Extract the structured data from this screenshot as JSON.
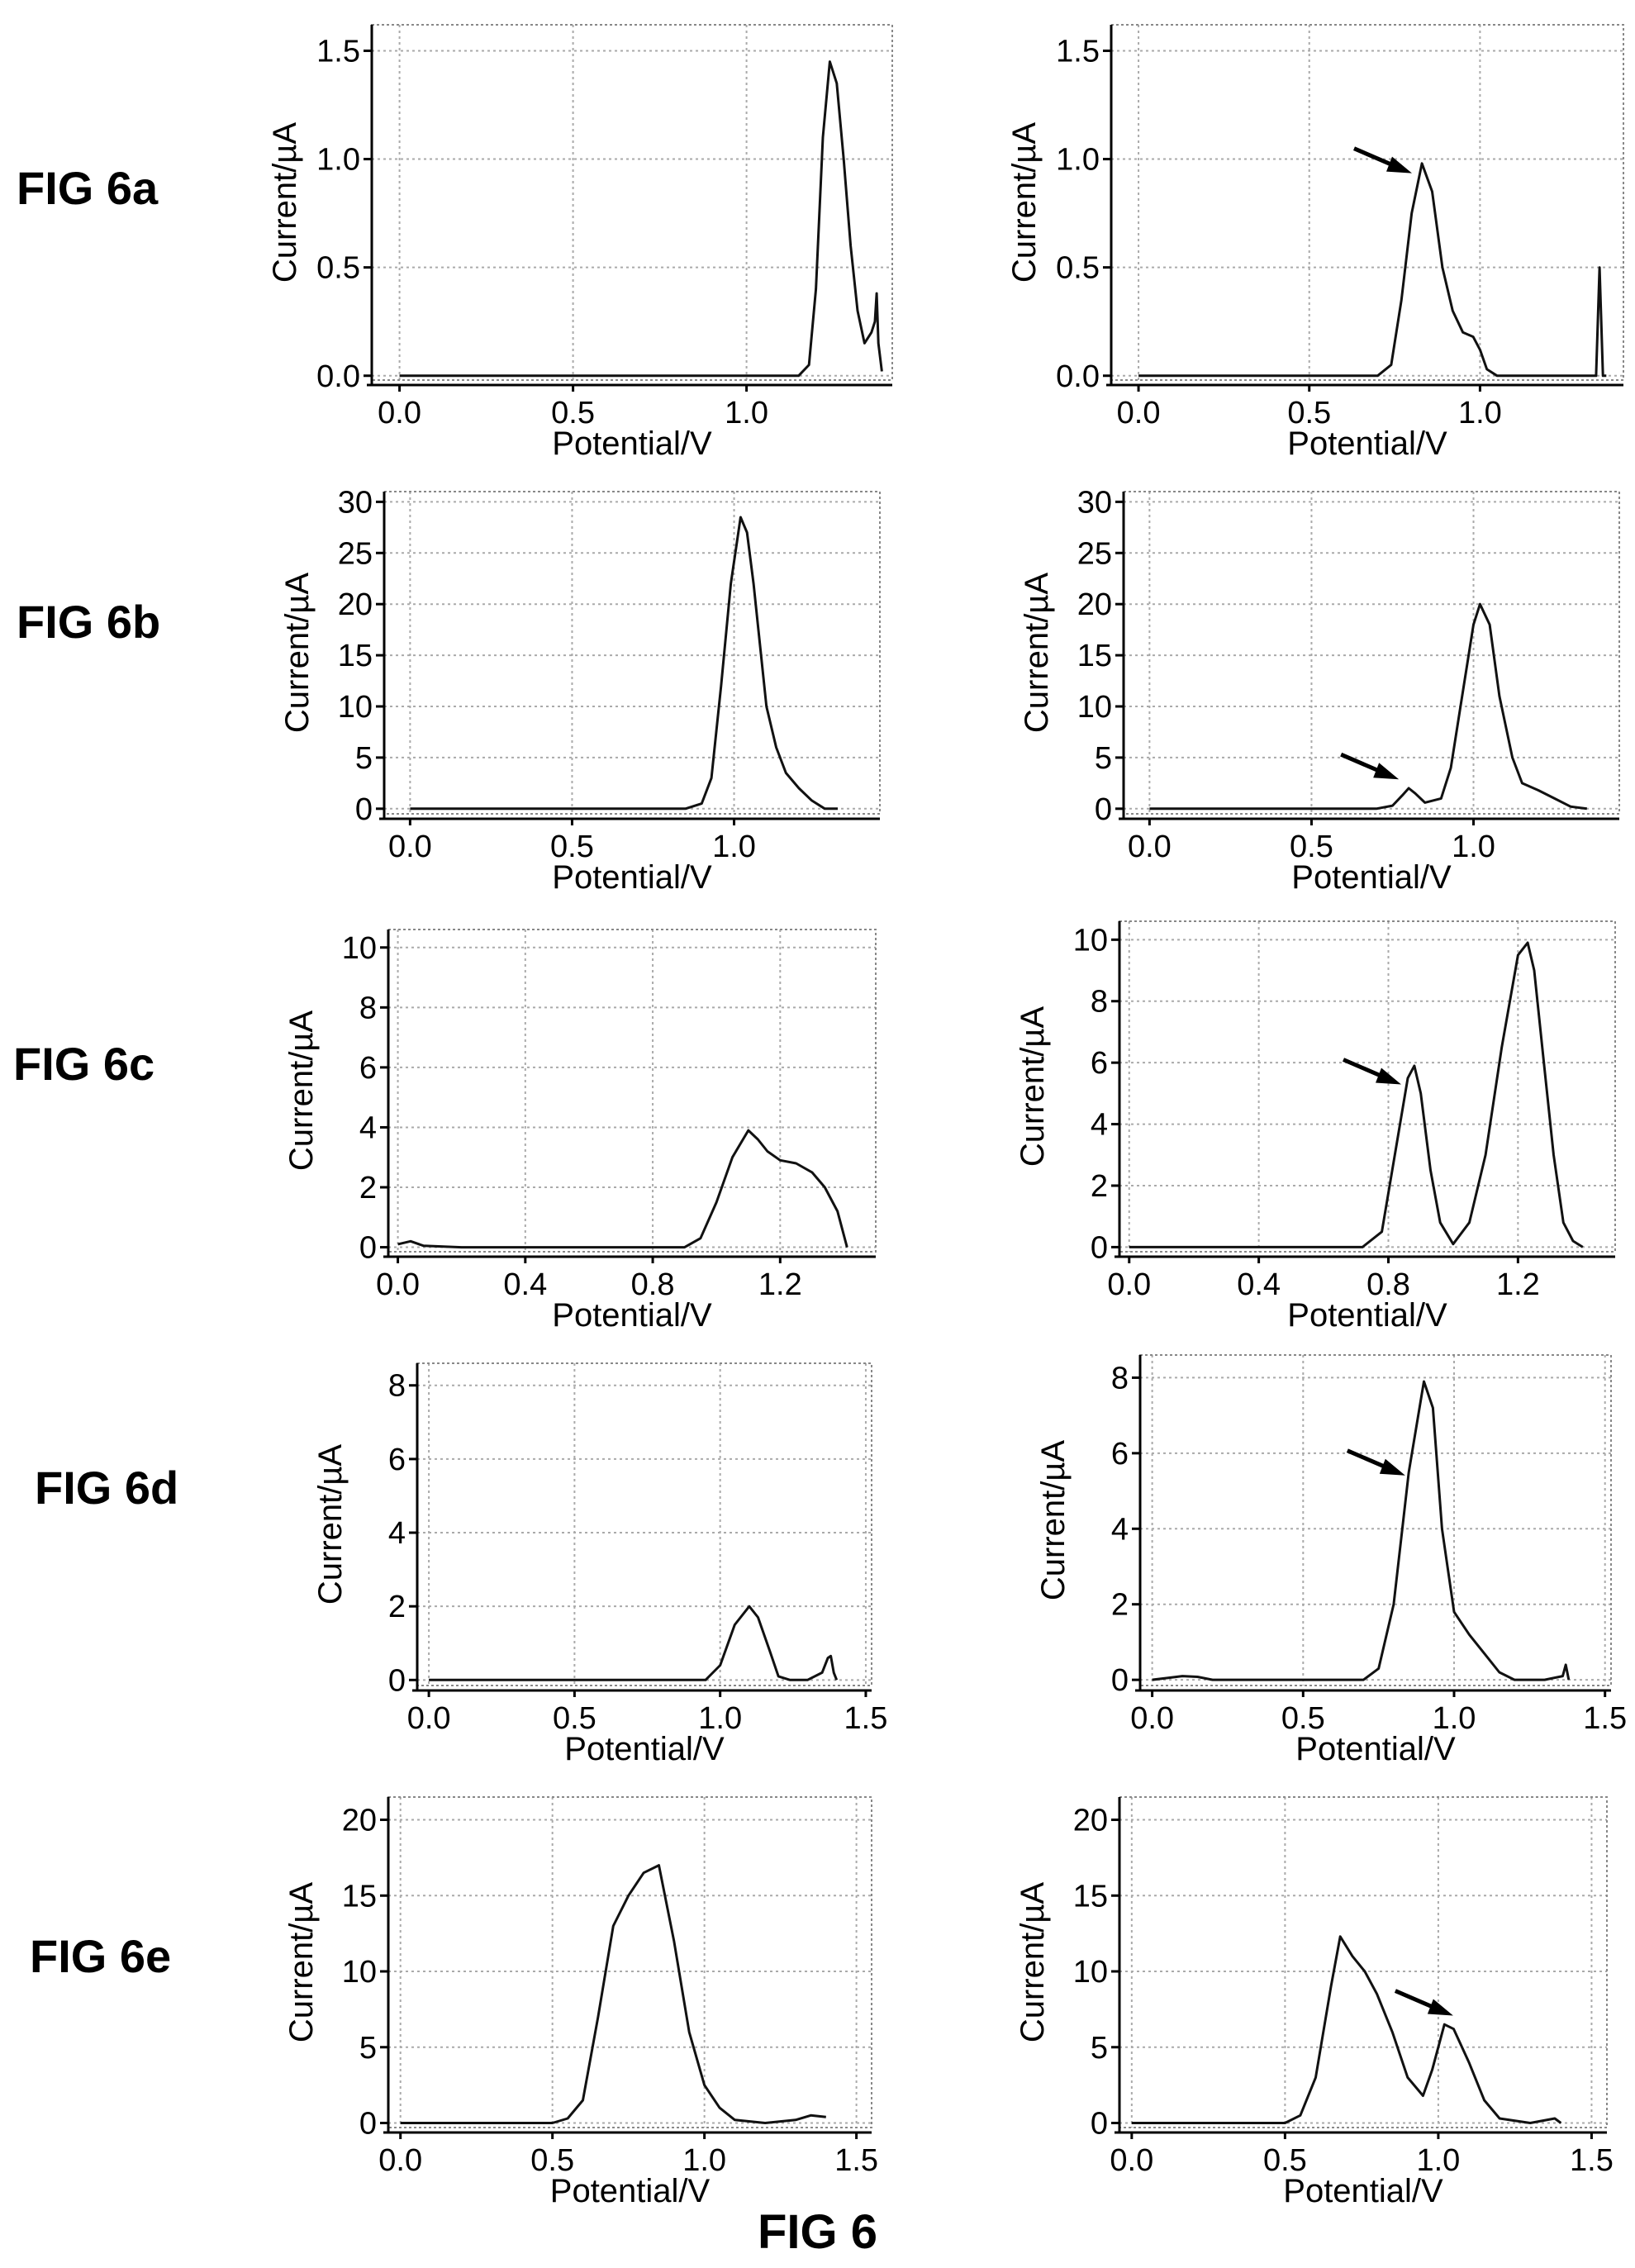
{
  "figure_title": "FIG 6",
  "row_labels": [
    "FIG 6a",
    "FIG 6b",
    "FIG 6c",
    "FIG 6d",
    "FIG 6e"
  ],
  "chart_data": [
    {
      "type": "line",
      "xlabel": "Potential/V",
      "ylabel": "Current/µA",
      "grid": true,
      "xlim": [
        -0.08,
        1.42
      ],
      "ylim": [
        -0.02,
        1.62
      ],
      "xticks": [
        0.0,
        0.5,
        1.0
      ],
      "xticklabels": [
        "0.0",
        "0.5",
        "1.0"
      ],
      "yticks": [
        0.0,
        0.5,
        1.0,
        1.5
      ],
      "yticklabels": [
        "0.0",
        "0.5",
        "1.0",
        "1.5"
      ],
      "series": [
        {
          "x": [
            0,
            0.5,
            1.0,
            1.15,
            1.18,
            1.2,
            1.22,
            1.24,
            1.26,
            1.28,
            1.3,
            1.32,
            1.34,
            1.36,
            1.37,
            1.375,
            1.38,
            1.39
          ],
          "y": [
            0,
            0,
            0,
            0,
            0.05,
            0.4,
            1.1,
            1.45,
            1.35,
            1.0,
            0.6,
            0.3,
            0.15,
            0.2,
            0.25,
            0.38,
            0.15,
            0.02
          ]
        }
      ],
      "arrows": []
    },
    {
      "type": "line",
      "xlabel": "Potential/V",
      "ylabel": "Current/µA",
      "grid": true,
      "xlim": [
        -0.08,
        1.42
      ],
      "ylim": [
        -0.02,
        1.62
      ],
      "xticks": [
        0.0,
        0.5,
        1.0
      ],
      "xticklabels": [
        "0.0",
        "0.5",
        "1.0"
      ],
      "yticks": [
        0.0,
        0.5,
        1.0,
        1.5
      ],
      "yticklabels": [
        "0.0",
        "0.5",
        "1.0",
        "1.5"
      ],
      "series": [
        {
          "x": [
            0,
            0.5,
            0.7,
            0.74,
            0.77,
            0.8,
            0.83,
            0.86,
            0.89,
            0.92,
            0.95,
            0.98,
            1.0,
            1.02,
            1.05,
            1.3,
            1.34,
            1.35,
            1.36,
            1.37
          ],
          "y": [
            0,
            0,
            0,
            0.05,
            0.35,
            0.75,
            0.98,
            0.85,
            0.5,
            0.3,
            0.2,
            0.18,
            0.12,
            0.03,
            0,
            0,
            0,
            0.5,
            0,
            0
          ]
        }
      ],
      "arrows": [
        {
          "x": 0.82,
          "y": 0.95
        }
      ]
    },
    {
      "type": "line",
      "xlabel": "Potential/V",
      "ylabel": "Current/µA",
      "grid": true,
      "xlim": [
        -0.08,
        1.45
      ],
      "ylim": [
        -0.5,
        31
      ],
      "xticks": [
        0.0,
        0.5,
        1.0
      ],
      "xticklabels": [
        "0.0",
        "0.5",
        "1.0"
      ],
      "yticks": [
        0,
        5,
        10,
        15,
        20,
        25,
        30
      ],
      "yticklabels": [
        "0",
        "5",
        "10",
        "15",
        "20",
        "25",
        "30"
      ],
      "series": [
        {
          "x": [
            0,
            0.5,
            0.85,
            0.9,
            0.93,
            0.96,
            0.99,
            1.02,
            1.04,
            1.06,
            1.08,
            1.1,
            1.13,
            1.16,
            1.2,
            1.24,
            1.28,
            1.32
          ],
          "y": [
            0,
            0,
            0,
            0.5,
            3,
            12,
            22,
            28.5,
            27,
            22,
            16,
            10,
            6,
            3.5,
            2,
            0.8,
            0,
            0
          ]
        }
      ],
      "arrows": []
    },
    {
      "type": "line",
      "xlabel": "Potential/V",
      "ylabel": "Current/µA",
      "grid": true,
      "xlim": [
        -0.08,
        1.45
      ],
      "ylim": [
        -0.5,
        31
      ],
      "xticks": [
        0.0,
        0.5,
        1.0
      ],
      "xticklabels": [
        "0.0",
        "0.5",
        "1.0"
      ],
      "yticks": [
        0,
        5,
        10,
        15,
        20,
        25,
        30
      ],
      "yticklabels": [
        "0",
        "5",
        "10",
        "15",
        "20",
        "25",
        "30"
      ],
      "series": [
        {
          "x": [
            0,
            0.5,
            0.7,
            0.75,
            0.78,
            0.8,
            0.82,
            0.85,
            0.9,
            0.93,
            0.96,
            1.0,
            1.02,
            1.05,
            1.08,
            1.12,
            1.15,
            1.2,
            1.25,
            1.3,
            1.35
          ],
          "y": [
            0,
            0,
            0,
            0.3,
            1.3,
            2,
            1.5,
            0.6,
            1,
            4,
            10,
            18,
            20,
            18,
            11,
            5,
            2.5,
            1.8,
            1,
            0.2,
            0
          ]
        }
      ],
      "arrows": [
        {
          "x": 0.79,
          "y": 3.2
        }
      ]
    },
    {
      "type": "line",
      "xlabel": "Potential/V",
      "ylabel": "Current/µA",
      "grid": true,
      "xlim": [
        -0.03,
        1.5
      ],
      "ylim": [
        -0.15,
        10.6
      ],
      "xticks": [
        0.0,
        0.4,
        0.8,
        1.2
      ],
      "xticklabels": [
        "0.0",
        "0.4",
        "0.8",
        "1.2"
      ],
      "yticks": [
        0,
        2,
        4,
        6,
        8,
        10
      ],
      "yticklabels": [
        "0",
        "2",
        "4",
        "6",
        "8",
        "10"
      ],
      "series": [
        {
          "x": [
            0,
            0.04,
            0.08,
            0.2,
            0.5,
            0.9,
            0.95,
            1.0,
            1.05,
            1.1,
            1.13,
            1.16,
            1.2,
            1.25,
            1.3,
            1.34,
            1.38,
            1.41
          ],
          "y": [
            0.1,
            0.2,
            0.05,
            0,
            0,
            0,
            0.3,
            1.5,
            3,
            3.9,
            3.6,
            3.2,
            2.9,
            2.8,
            2.5,
            2,
            1.2,
            0
          ]
        }
      ],
      "arrows": []
    },
    {
      "type": "line",
      "xlabel": "Potential/V",
      "ylabel": "Current/µA",
      "grid": true,
      "xlim": [
        -0.03,
        1.5
      ],
      "ylim": [
        -0.15,
        10.6
      ],
      "xticks": [
        0.0,
        0.4,
        0.8,
        1.2
      ],
      "xticklabels": [
        "0.0",
        "0.4",
        "0.8",
        "1.2"
      ],
      "yticks": [
        0,
        2,
        4,
        6,
        8,
        10
      ],
      "yticklabels": [
        "0",
        "2",
        "4",
        "6",
        "8",
        "10"
      ],
      "series": [
        {
          "x": [
            0,
            0.5,
            0.72,
            0.78,
            0.82,
            0.86,
            0.88,
            0.9,
            0.93,
            0.96,
            1.0,
            1.05,
            1.1,
            1.15,
            1.2,
            1.23,
            1.25,
            1.28,
            1.31,
            1.34,
            1.37,
            1.4
          ],
          "y": [
            0,
            0,
            0,
            0.5,
            3,
            5.5,
            5.9,
            5,
            2.5,
            0.8,
            0.1,
            0.8,
            3,
            6.5,
            9.5,
            9.9,
            9,
            6,
            3,
            0.8,
            0.2,
            0
          ]
        }
      ],
      "arrows": [
        {
          "x": 0.86,
          "y": 5.4
        }
      ]
    },
    {
      "type": "line",
      "xlabel": "Potential/V",
      "ylabel": "Current/µA",
      "grid": true,
      "xlim": [
        -0.04,
        1.52
      ],
      "ylim": [
        -0.15,
        8.6
      ],
      "xticks": [
        0.0,
        0.5,
        1.0,
        1.5
      ],
      "xticklabels": [
        "0.0",
        "0.5",
        "1.0",
        "1.5"
      ],
      "yticks": [
        0,
        2,
        4,
        6,
        8
      ],
      "yticklabels": [
        "0",
        "2",
        "4",
        "6",
        "8"
      ],
      "series": [
        {
          "x": [
            0,
            0.5,
            0.95,
            1.0,
            1.05,
            1.1,
            1.13,
            1.17,
            1.2,
            1.24,
            1.3,
            1.35,
            1.37,
            1.38,
            1.39,
            1.4
          ],
          "y": [
            0,
            0,
            0,
            0.4,
            1.5,
            2,
            1.7,
            0.8,
            0.1,
            0,
            0,
            0.2,
            0.6,
            0.65,
            0.2,
            0
          ]
        }
      ],
      "arrows": []
    },
    {
      "type": "line",
      "xlabel": "Potential/V",
      "ylabel": "Current/µA",
      "grid": true,
      "xlim": [
        -0.04,
        1.52
      ],
      "ylim": [
        -0.15,
        8.6
      ],
      "xticks": [
        0.0,
        0.5,
        1.0,
        1.5
      ],
      "xticklabels": [
        "0.0",
        "0.5",
        "1.0",
        "1.5"
      ],
      "yticks": [
        0,
        2,
        4,
        6,
        8
      ],
      "yticklabels": [
        "0",
        "2",
        "4",
        "6",
        "8"
      ],
      "series": [
        {
          "x": [
            0,
            0.05,
            0.1,
            0.15,
            0.2,
            0.3,
            0.5,
            0.7,
            0.75,
            0.8,
            0.85,
            0.9,
            0.93,
            0.96,
            1.0,
            1.05,
            1.1,
            1.15,
            1.2,
            1.3,
            1.36,
            1.37,
            1.38
          ],
          "y": [
            0,
            0.05,
            0.1,
            0.08,
            0,
            0,
            0,
            0,
            0.3,
            2,
            5.5,
            7.9,
            7.2,
            4,
            1.8,
            1.2,
            0.7,
            0.2,
            0,
            0,
            0.1,
            0.4,
            0
          ]
        }
      ],
      "arrows": [
        {
          "x": 0.86,
          "y": 5.5
        }
      ]
    },
    {
      "type": "line",
      "xlabel": "Potential/V",
      "ylabel": "Current/µA",
      "grid": true,
      "xlim": [
        -0.04,
        1.55
      ],
      "ylim": [
        -0.3,
        21.5
      ],
      "xticks": [
        0.0,
        0.5,
        1.0,
        1.5
      ],
      "xticklabels": [
        "0.0",
        "0.5",
        "1.0",
        "1.5"
      ],
      "yticks": [
        0,
        5,
        10,
        15,
        20
      ],
      "yticklabels": [
        "0",
        "5",
        "10",
        "15",
        "20"
      ],
      "series": [
        {
          "x": [
            0,
            0.5,
            0.55,
            0.6,
            0.65,
            0.7,
            0.75,
            0.8,
            0.85,
            0.9,
            0.95,
            1.0,
            1.05,
            1.1,
            1.2,
            1.3,
            1.35,
            1.4
          ],
          "y": [
            0,
            0,
            0.3,
            1.5,
            7,
            13,
            15,
            16.5,
            17,
            12,
            6,
            2.5,
            1,
            0.2,
            0,
            0.2,
            0.5,
            0.4
          ]
        }
      ],
      "arrows": []
    },
    {
      "type": "line",
      "xlabel": "Potential/V",
      "ylabel": "Current/µA",
      "grid": true,
      "xlim": [
        -0.04,
        1.55
      ],
      "ylim": [
        -0.3,
        21.5
      ],
      "xticks": [
        0.0,
        0.5,
        1.0,
        1.5
      ],
      "xticklabels": [
        "0.0",
        "0.5",
        "1.0",
        "1.5"
      ],
      "yticks": [
        0,
        5,
        10,
        15,
        20
      ],
      "yticklabels": [
        "0",
        "5",
        "10",
        "15",
        "20"
      ],
      "series": [
        {
          "x": [
            0,
            0.5,
            0.55,
            0.6,
            0.65,
            0.68,
            0.72,
            0.76,
            0.8,
            0.85,
            0.9,
            0.95,
            0.98,
            1.02,
            1.05,
            1.1,
            1.15,
            1.2,
            1.3,
            1.38,
            1.4
          ],
          "y": [
            0,
            0,
            0.5,
            3,
            9,
            12.3,
            11,
            10,
            8.5,
            6,
            3,
            1.8,
            3.5,
            6.5,
            6.2,
            4,
            1.5,
            0.3,
            0,
            0.3,
            0
          ]
        }
      ],
      "arrows": [
        {
          "x": 1.07,
          "y": 7.3
        }
      ]
    }
  ]
}
